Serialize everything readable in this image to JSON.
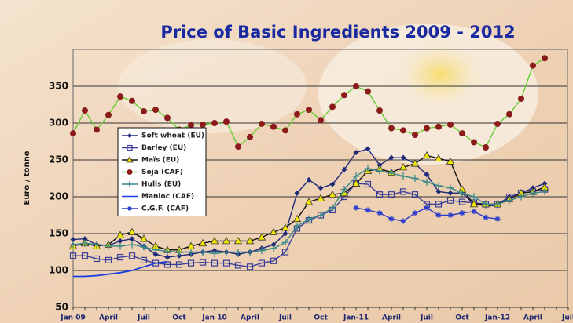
{
  "chart_data": {
    "type": "line",
    "title": "Price of Basic Ingredients  2009 - 2012",
    "ylabel": "Euro / tonne",
    "categories": [
      "Jan 09",
      null,
      null,
      "April",
      null,
      null,
      "Juil",
      null,
      null,
      "Oct",
      null,
      null,
      "Jan 10",
      null,
      null,
      "April",
      null,
      null,
      "Juil",
      null,
      null,
      "Oct",
      null,
      null,
      "Jan-11",
      null,
      null,
      "April",
      null,
      null,
      "Juil",
      null,
      null,
      "Oct",
      null,
      null,
      "Jan-12",
      null,
      null,
      "April",
      null,
      null,
      "Juil"
    ],
    "ylim": [
      50,
      400
    ],
    "yticks": [
      50,
      100,
      150,
      200,
      250,
      300,
      350
    ],
    "grid": true,
    "legend": "upper left",
    "series": [
      {
        "name": "Soft wheat (EU)",
        "color": "#1f2a7a",
        "marker": "diamond",
        "marker_color": "#1f2a7a",
        "values": [
          142,
          143,
          135,
          134,
          140,
          143,
          133,
          122,
          118,
          120,
          122,
          125,
          127,
          125,
          122,
          125,
          130,
          135,
          150,
          205,
          223,
          212,
          217,
          237,
          260,
          265,
          243,
          253,
          253,
          245,
          230,
          207,
          205,
          205,
          190,
          188,
          188,
          200,
          205,
          212,
          218,
          null,
          null
        ]
      },
      {
        "name": "Barley (EU)",
        "color": "#3a3f9a",
        "marker": "square-open",
        "marker_color": "#3a3f9a",
        "values": [
          120,
          120,
          116,
          114,
          118,
          120,
          114,
          110,
          108,
          108,
          110,
          111,
          110,
          110,
          107,
          105,
          110,
          113,
          125,
          157,
          168,
          175,
          182,
          200,
          218,
          217,
          203,
          203,
          207,
          203,
          190,
          190,
          195,
          193,
          192,
          190,
          190,
          200,
          205,
          207,
          210,
          null,
          null
        ]
      },
      {
        "name": "Maïs (EU)",
        "color": "#111111",
        "marker": "triangle",
        "marker_color": "#f2e600",
        "values": [
          133,
          137,
          133,
          135,
          148,
          152,
          143,
          133,
          128,
          128,
          133,
          137,
          140,
          140,
          140,
          140,
          145,
          152,
          158,
          170,
          193,
          198,
          203,
          205,
          218,
          235,
          238,
          233,
          240,
          245,
          256,
          252,
          248,
          210,
          190,
          190,
          190,
          197,
          205,
          207,
          213,
          null,
          null
        ]
      },
      {
        "name": "Soja (CAF)",
        "color": "#66cc33",
        "marker": "circle",
        "marker_color": "#8b1a1a",
        "values": [
          286,
          317,
          291,
          311,
          336,
          330,
          316,
          318,
          307,
          291,
          297,
          298,
          300,
          302,
          268,
          281,
          299,
          295,
          290,
          312,
          318,
          304,
          322,
          338,
          350,
          343,
          317,
          293,
          290,
          284,
          293,
          295,
          298,
          286,
          274,
          267,
          299,
          312,
          333,
          378,
          388,
          null,
          null
        ]
      },
      {
        "name": "Hulls (EU)",
        "color": "#3a8a8a",
        "marker": "plus",
        "marker_color": "#3a8a8a",
        "values": [
          135,
          137,
          135,
          133,
          133,
          135,
          132,
          128,
          126,
          125,
          125,
          125,
          123,
          125,
          125,
          125,
          127,
          130,
          138,
          160,
          170,
          175,
          185,
          210,
          228,
          238,
          235,
          232,
          228,
          225,
          220,
          215,
          212,
          205,
          200,
          190,
          190,
          195,
          200,
          205,
          207,
          null,
          null
        ]
      },
      {
        "name": "Manioc (CAF)",
        "color": "#1a3ee0",
        "marker": "none",
        "marker_color": "#1a3ee0",
        "values": [
          92,
          92,
          93,
          95,
          97,
          100,
          105,
          110,
          112,
          null,
          null,
          null,
          null,
          null,
          null,
          null,
          null,
          null,
          null,
          null,
          null,
          null,
          null,
          null,
          null,
          null,
          null,
          null,
          null,
          null,
          null,
          null,
          null,
          null,
          null,
          null,
          null,
          null,
          null,
          null,
          null,
          null,
          null
        ]
      },
      {
        "name": "C.G.F. (CAF)",
        "color": "#2a3ccc",
        "marker": "star",
        "marker_color": "#2a3ccc",
        "values": [
          null,
          null,
          null,
          null,
          null,
          null,
          null,
          null,
          null,
          null,
          null,
          null,
          null,
          null,
          null,
          null,
          null,
          null,
          null,
          null,
          null,
          null,
          null,
          null,
          185,
          182,
          178,
          170,
          167,
          178,
          185,
          175,
          175,
          178,
          180,
          172,
          170,
          null,
          null,
          null,
          null,
          null,
          null
        ]
      }
    ]
  }
}
